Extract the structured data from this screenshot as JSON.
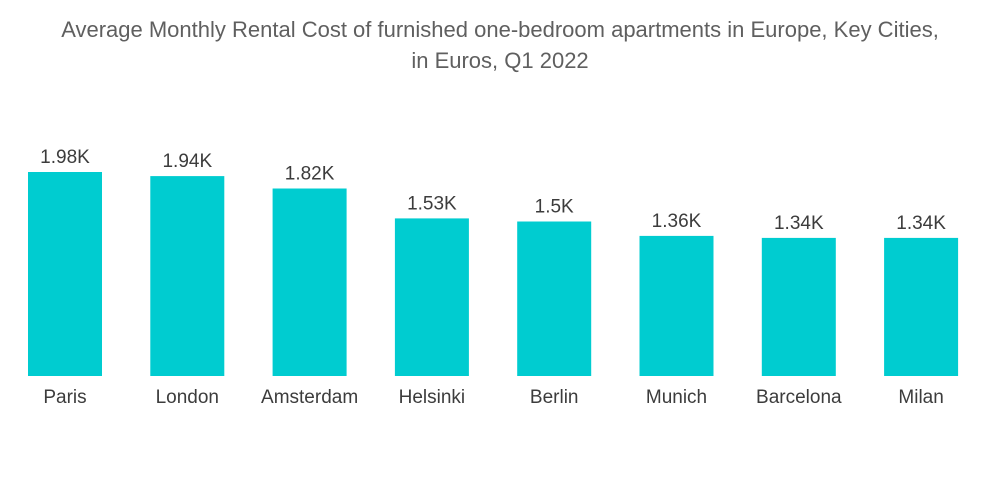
{
  "chart_data": {
    "type": "bar",
    "title_line1": "Average Monthly Rental Cost of furnished one-bedroom apartments in Europe, Key Cities,",
    "title_line2": "in Euros, Q1 2022",
    "categories": [
      "Paris",
      "London",
      "Amsterdam",
      "Helsinki",
      "Berlin",
      "Munich",
      "Barcelona",
      "Milan"
    ],
    "values": [
      1980,
      1940,
      1820,
      1530,
      1500,
      1360,
      1340,
      1340
    ],
    "value_labels": [
      "1.98K",
      "1.94K",
      "1.82K",
      "1.53K",
      "1.5K",
      "1.36K",
      "1.34K",
      "1.34K"
    ],
    "xlabel": "",
    "ylabel": "",
    "ylim": [
      0,
      1980
    ],
    "grid": false,
    "legend": "none",
    "colors": {
      "bar": "#00CCD0",
      "text": "#3c3c3c",
      "title": "#5f5f5f"
    }
  }
}
